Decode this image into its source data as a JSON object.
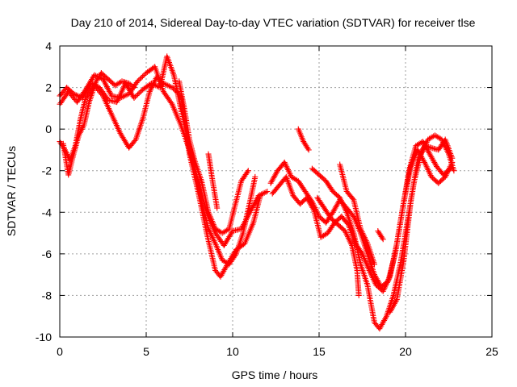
{
  "chart_data": {
    "type": "scatter",
    "title": "Day 210 of 2014, Sidereal Day-to-day VTEC variation (SDTVAR) for receiver tlse",
    "xlabel": "GPS time / hours",
    "ylabel": "SDTVAR / TECUs",
    "xlim": [
      0,
      25
    ],
    "ylim": [
      -10,
      4
    ],
    "xticks": [
      "0",
      "5",
      "10",
      "15",
      "20",
      "25"
    ],
    "yticks": [
      "-10",
      "-8",
      "-6",
      "-4",
      "-2",
      "0",
      "2",
      "4"
    ],
    "grid": true,
    "marker": "plus",
    "color": "#ff0000",
    "series": [
      {
        "points": [
          [
            0,
            1.2
          ],
          [
            0.5,
            1.8
          ],
          [
            1,
            1.3
          ],
          [
            1.5,
            1.9
          ],
          [
            2,
            2.6
          ],
          [
            2.5,
            2.4
          ],
          [
            3,
            1.6
          ],
          [
            3.5,
            1.5
          ],
          [
            4,
            1.7
          ],
          [
            4.5,
            2.3
          ],
          [
            5,
            2.7
          ],
          [
            5.5,
            3.0
          ],
          [
            6,
            1.8
          ],
          [
            6.5,
            1.2
          ],
          [
            7,
            0.2
          ],
          [
            7.5,
            -1.0
          ],
          [
            8,
            -2.5
          ],
          [
            8.5,
            -4.0
          ],
          [
            9,
            -5.0
          ],
          [
            9.5,
            -5.6
          ],
          [
            10,
            -4.9
          ],
          [
            10.5,
            -4.8
          ],
          [
            11,
            -4.0
          ],
          [
            11.5,
            -3.2
          ],
          [
            12,
            -3.0
          ]
        ]
      },
      {
        "points": [
          [
            0,
            1.6
          ],
          [
            0.4,
            2.0
          ],
          [
            0.8,
            1.7
          ],
          [
            1.3,
            1.5
          ],
          [
            1.8,
            2.2
          ],
          [
            2.3,
            2.0
          ],
          [
            2.8,
            1.4
          ],
          [
            3.3,
            1.3
          ],
          [
            3.8,
            2.2
          ],
          [
            4.3,
            1.5
          ],
          [
            4.8,
            1.9
          ],
          [
            5.3,
            2.2
          ],
          [
            5.8,
            2.0
          ],
          [
            6.2,
            3.5
          ],
          [
            6.6,
            2.6
          ],
          [
            7,
            1.0
          ],
          [
            7.4,
            -0.5
          ],
          [
            7.8,
            -1.8
          ],
          [
            8.2,
            -3.5
          ],
          [
            8.6,
            -4.8
          ],
          [
            9,
            -5.5
          ],
          [
            9.4,
            -6.3
          ],
          [
            9.8,
            -6.5
          ],
          [
            10.2,
            -6.0
          ],
          [
            10.6,
            -5.0
          ],
          [
            11,
            -3.5
          ],
          [
            11.3,
            -2.3
          ]
        ]
      },
      {
        "points": [
          [
            0,
            -0.6
          ],
          [
            0.3,
            -1.0
          ],
          [
            0.6,
            -1.5
          ],
          [
            0.9,
            -0.8
          ],
          [
            1.2,
            0.5
          ],
          [
            1.5,
            1.5
          ],
          [
            2,
            2.1
          ],
          [
            2.5,
            1.6
          ],
          [
            3,
            0.7
          ],
          [
            3.5,
            -0.2
          ],
          [
            4,
            -0.9
          ],
          [
            4.4,
            -0.5
          ],
          [
            4.8,
            0.5
          ],
          [
            5.2,
            1.8
          ],
          [
            5.6,
            2.5
          ],
          [
            6,
            2.2
          ],
          [
            6.5,
            2.0
          ],
          [
            7,
            1.6
          ],
          [
            7.5,
            -1.2
          ],
          [
            8,
            -3.0
          ],
          [
            8.5,
            -5.0
          ],
          [
            9,
            -6.8
          ],
          [
            9.3,
            -7.1
          ],
          [
            9.7,
            -6.5
          ],
          [
            10.2,
            -5.8
          ],
          [
            10.7,
            -5.5
          ],
          [
            11.2,
            -4.5
          ],
          [
            11.6,
            -3.2
          ]
        ]
      },
      {
        "points": [
          [
            0.2,
            -0.7
          ],
          [
            0.5,
            -2.2
          ],
          [
            0.8,
            -1.2
          ],
          [
            1.1,
            -0.3
          ],
          [
            1.4,
            0.2
          ],
          [
            1.7,
            1.3
          ],
          [
            2.1,
            2.3
          ],
          [
            2.4,
            2.7
          ],
          [
            2.8,
            2.4
          ],
          [
            3.2,
            2.1
          ],
          [
            3.6,
            2.3
          ],
          [
            4,
            2.2
          ],
          [
            4.3,
            2.0
          ]
        ]
      },
      {
        "points": [
          [
            6.9,
            2.3
          ],
          [
            7.2,
            1.0
          ],
          [
            7.5,
            -0.5
          ],
          [
            7.8,
            -1.5
          ],
          [
            8.2,
            -2.5
          ],
          [
            8.6,
            -4.0
          ],
          [
            9,
            -4.8
          ],
          [
            9.4,
            -5.0
          ],
          [
            9.8,
            -4.8
          ],
          [
            10.1,
            -3.8
          ],
          [
            10.5,
            -2.5
          ],
          [
            10.9,
            -2.0
          ]
        ]
      },
      {
        "points": [
          [
            8.6,
            -1.2
          ],
          [
            8.8,
            -2.3
          ],
          [
            9.1,
            -3.8
          ]
        ]
      },
      {
        "points": [
          [
            12.2,
            -2.6
          ],
          [
            12.6,
            -2.0
          ],
          [
            13,
            -1.6
          ],
          [
            13.4,
            -2.3
          ],
          [
            13.8,
            -2.5
          ],
          [
            14.2,
            -3.0
          ],
          [
            14.6,
            -3.5
          ],
          [
            15,
            -4.2
          ],
          [
            15.4,
            -4.5
          ],
          [
            15.8,
            -4.0
          ],
          [
            16.2,
            -3.4
          ],
          [
            16.6,
            -3.8
          ],
          [
            17,
            -4.2
          ],
          [
            17.4,
            -5.0
          ],
          [
            17.8,
            -6.0
          ],
          [
            18.2,
            -7.0
          ],
          [
            18.6,
            -7.6
          ],
          [
            19,
            -7.3
          ],
          [
            19.4,
            -6.0
          ],
          [
            19.8,
            -4.0
          ],
          [
            20.2,
            -2.0
          ],
          [
            20.6,
            -0.8
          ],
          [
            21,
            -0.6
          ],
          [
            21.4,
            -1.2
          ],
          [
            21.8,
            -1.8
          ],
          [
            22.2,
            -2.2
          ],
          [
            22.6,
            -1.9
          ]
        ]
      },
      {
        "points": [
          [
            12.3,
            -3.1
          ],
          [
            12.7,
            -2.7
          ],
          [
            13.1,
            -2.3
          ],
          [
            13.5,
            -3.2
          ],
          [
            13.9,
            -3.6
          ],
          [
            14.3,
            -3.3
          ],
          [
            14.7,
            -3.9
          ],
          [
            15.1,
            -5.2
          ],
          [
            15.5,
            -5.0
          ],
          [
            15.9,
            -4.5
          ],
          [
            16.3,
            -4.2
          ],
          [
            16.7,
            -4.6
          ],
          [
            17.1,
            -5.5
          ],
          [
            17.5,
            -6.0
          ],
          [
            17.9,
            -6.8
          ],
          [
            18.3,
            -7.5
          ],
          [
            18.7,
            -7.8
          ],
          [
            19.1,
            -7.1
          ],
          [
            19.5,
            -5.5
          ],
          [
            19.9,
            -3.5
          ],
          [
            20.3,
            -1.8
          ],
          [
            20.7,
            -1.0
          ],
          [
            21.1,
            -1.6
          ],
          [
            21.5,
            -2.3
          ],
          [
            21.9,
            -2.6
          ],
          [
            22.3,
            -2.3
          ],
          [
            22.7,
            -1.6
          ]
        ]
      },
      {
        "points": [
          [
            13.8,
            0.0
          ],
          [
            14.1,
            -0.6
          ],
          [
            14.4,
            -1.0
          ]
        ]
      },
      {
        "points": [
          [
            14.6,
            -1.9
          ],
          [
            15,
            -2.2
          ],
          [
            15.4,
            -2.5
          ],
          [
            15.8,
            -3.0
          ],
          [
            16.2,
            -3.3
          ],
          [
            16.6,
            -4.0
          ],
          [
            17,
            -5.0
          ],
          [
            17.4,
            -6.5
          ],
          [
            17.8,
            -7.5
          ],
          [
            18.2,
            -9.3
          ],
          [
            18.5,
            -9.6
          ],
          [
            18.9,
            -9.0
          ],
          [
            19.3,
            -8.0
          ],
          [
            19.7,
            -6.5
          ],
          [
            20.1,
            -4.5
          ],
          [
            20.5,
            -2.5
          ],
          [
            20.9,
            -1.2
          ],
          [
            21.3,
            -0.5
          ],
          [
            21.7,
            -0.3
          ],
          [
            22.1,
            -0.5
          ],
          [
            22.5,
            -1.2
          ],
          [
            22.8,
            -2.0
          ]
        ]
      },
      {
        "points": [
          [
            14.9,
            -3.3
          ],
          [
            15.3,
            -3.8
          ],
          [
            15.7,
            -4.3
          ],
          [
            16.1,
            -4.6
          ],
          [
            16.5,
            -4.9
          ],
          [
            16.9,
            -5.6
          ],
          [
            17.2,
            -6.8
          ],
          [
            17.3,
            -8.0
          ]
        ]
      },
      {
        "points": [
          [
            16.2,
            -1.7
          ],
          [
            16.6,
            -3.0
          ],
          [
            17,
            -3.4
          ],
          [
            17.4,
            -4.8
          ],
          [
            17.8,
            -5.5
          ],
          [
            18.2,
            -6.5
          ]
        ]
      },
      {
        "points": [
          [
            18.4,
            -4.9
          ],
          [
            18.7,
            -5.3
          ]
        ]
      },
      {
        "points": [
          [
            19.1,
            -8.8
          ],
          [
            19.5,
            -8.2
          ],
          [
            19.9,
            -6.3
          ],
          [
            20.3,
            -3.5
          ],
          [
            20.7,
            -1.5
          ],
          [
            21.1,
            -0.8
          ],
          [
            21.5,
            -0.9
          ],
          [
            21.9,
            -1.0
          ],
          [
            22.3,
            -0.5
          ],
          [
            22.7,
            -1.4
          ]
        ]
      }
    ]
  }
}
